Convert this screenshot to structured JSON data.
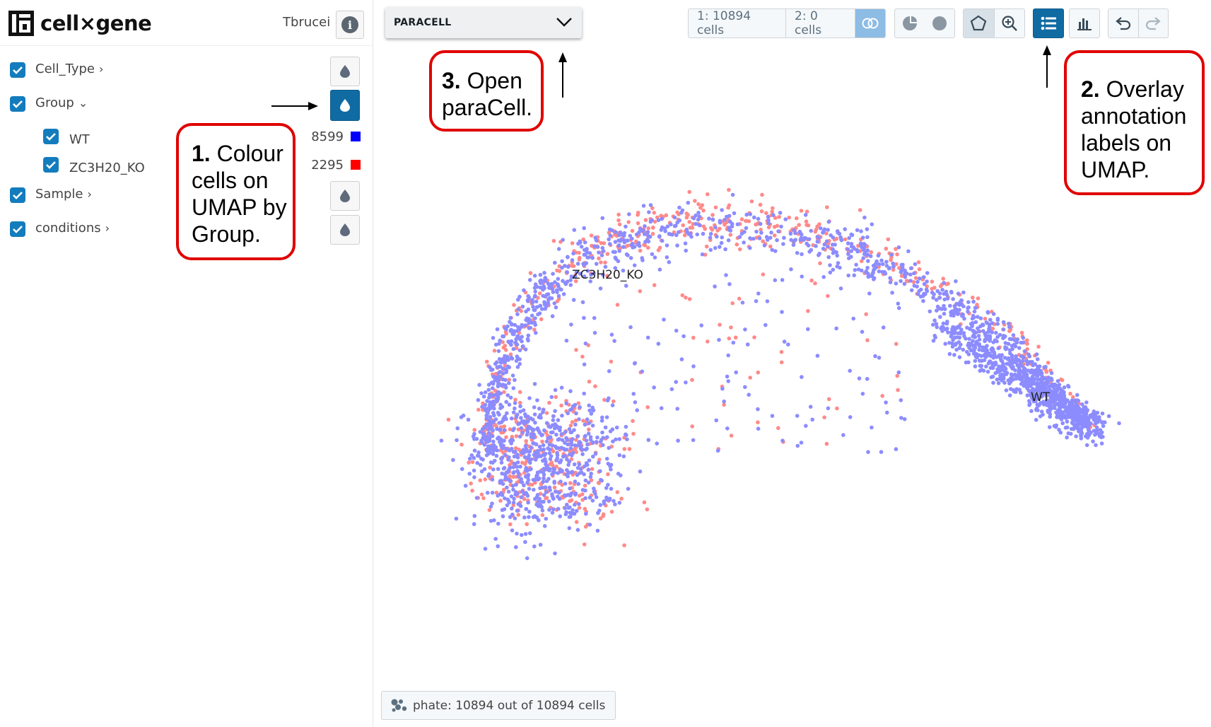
{
  "app": {
    "title": "cell×gene",
    "dataset": "Tbrucei"
  },
  "categories": [
    {
      "label": "Cell_Type",
      "expanded": false,
      "checked": true
    },
    {
      "label": "Group",
      "expanded": true,
      "checked": true,
      "color_by_active": true
    },
    {
      "label": "Sample",
      "expanded": false,
      "checked": true
    },
    {
      "label": "conditions",
      "expanded": false,
      "checked": true
    }
  ],
  "group_values": [
    {
      "label": "WT",
      "count": "8599",
      "color": "#0000ff"
    },
    {
      "label": "ZC3H20_KO",
      "count": "2295",
      "color": "#ff0000"
    }
  ],
  "toolbar": {
    "embedding_select": "PARACELL",
    "set1": "1: 10894 cells",
    "set2": "2: 0 cells",
    "icons": [
      "intersection-icon",
      "pie-icon",
      "circle-icon",
      "lasso-icon",
      "zoom-icon",
      "list-icon",
      "chart-icon",
      "undo-icon",
      "redo-icon"
    ]
  },
  "callouts": {
    "c1": {
      "num": "1.",
      "text": "Colour cells on UMAP by Group."
    },
    "c2": {
      "num": "2.",
      "text": "Overlay annotation labels on UMAP."
    },
    "c3": {
      "num": "3.",
      "text": "Open paraCell."
    }
  },
  "plot": {
    "label_ko": "ZC3H20_KO",
    "label_wt": "WT",
    "colors": {
      "wt": "#8c8cff",
      "ko": "#ff8a8a"
    }
  },
  "footer": {
    "text": "phate: 10894 out of 10894 cells"
  }
}
